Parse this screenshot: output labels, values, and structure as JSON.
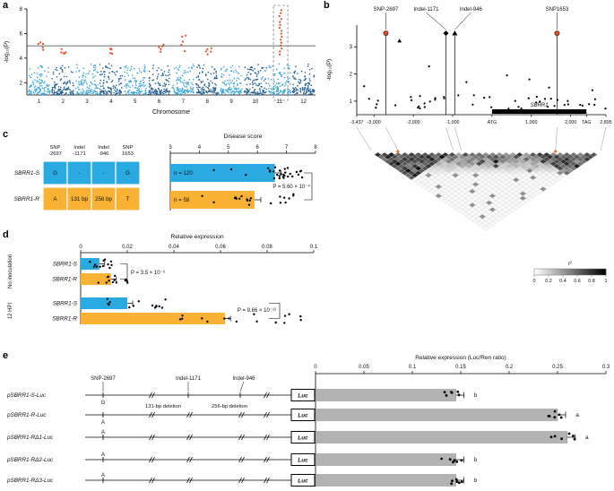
{
  "colors": {
    "chrom_light": "#3aa7dc",
    "chrom_dark": "#1e5f94",
    "significant": "#e84b2a",
    "threshold": "#3a3a3a",
    "blue": "#29abe2",
    "orange": "#f9b233",
    "gray_bar": "#b3b3b3",
    "ld_dot": "#e87722"
  },
  "panels": {
    "a": {
      "letter": "a"
    },
    "b": {
      "letter": "b"
    },
    "c": {
      "letter": "c"
    },
    "d": {
      "letter": "d"
    },
    "e": {
      "letter": "e"
    }
  },
  "chart_data": [
    {
      "id": "gwas_manhattan",
      "panel": "a",
      "type": "scatter",
      "title": "",
      "xlabel": "Chromosome",
      "ylabel": "-log₁₀(P)",
      "ylim": [
        1,
        8
      ],
      "yticks": [
        2,
        4,
        6,
        8
      ],
      "threshold": 5,
      "categories": [
        "1",
        "2",
        "3",
        "4",
        "5",
        "6",
        "7",
        "8",
        "9",
        "10",
        "11",
        "12"
      ],
      "peaks": [
        {
          "chromosome": "1",
          "max_logp": 5.3
        },
        {
          "chromosome": "2",
          "max_logp": 4.9
        },
        {
          "chromosome": "4",
          "max_logp": 4.8
        },
        {
          "chromosome": "6",
          "max_logp": 5.2
        },
        {
          "chromosome": "7",
          "max_logp": 5.9
        },
        {
          "chromosome": "8",
          "max_logp": 4.9
        },
        {
          "chromosome": "11",
          "max_logp": 7.9
        }
      ],
      "highlight_chromosome": "11"
    },
    {
      "id": "regional_association",
      "panel": "b",
      "type": "scatter",
      "ylabel": "-log₁₀(P)",
      "ylim": [
        0.5,
        3.8
      ],
      "yticks": [
        1,
        2,
        3
      ],
      "xlim": [
        -3437,
        2895
      ],
      "xticks": [
        {
          "label": "-3,437",
          "pos": -3437
        },
        {
          "label": "-3,000",
          "pos": -3000
        },
        {
          "label": "-2,000",
          "pos": -2000
        },
        {
          "label": "-1,000",
          "pos": -1000
        },
        {
          "label": "ATG",
          "pos": 0
        },
        {
          "label": "1,000",
          "pos": 1000
        },
        {
          "label": "2,000",
          "pos": 2000
        },
        {
          "label": "TAG",
          "pos": 2400
        },
        {
          "label": "2,895",
          "pos": 2895
        }
      ],
      "gene": {
        "name": "SBRR1",
        "start": 0,
        "end": 2400
      },
      "markers": [
        {
          "label": "SNP-2697",
          "pos": -2697,
          "logp": 3.5,
          "shape": "circle",
          "color": "#e84b2a"
        },
        {
          "label": "Indel-1171",
          "pos": -1171,
          "logp": 3.5,
          "shape": "diamond",
          "color": "#000000"
        },
        {
          "label": "Indel-946",
          "pos": -946,
          "logp": 3.5,
          "shape": "triangle",
          "color": "#000000"
        },
        {
          "label": "SNP1653",
          "pos": 1653,
          "logp": 3.5,
          "shape": "circle",
          "color": "#e84b2a"
        }
      ],
      "ld_legend": {
        "title": "r²",
        "ticks": [
          "0",
          "0.2",
          "0.4",
          "0.6",
          "0.8",
          "1"
        ]
      }
    },
    {
      "id": "haplotype_table",
      "panel": "c",
      "type": "table",
      "columns": [
        [
          "SNP",
          "-2697"
        ],
        [
          "Indel",
          "-1171"
        ],
        [
          "Indel",
          "-946"
        ],
        [
          "SNP",
          "1653"
        ]
      ],
      "rows": [
        {
          "name": "SBRR1-S",
          "cells": [
            "G",
            "-",
            "-",
            "G"
          ],
          "color": "#29abe2"
        },
        {
          "name": "SBRR1-R",
          "cells": [
            "A",
            "131 bp",
            "256 bp",
            "T"
          ],
          "color": "#f9b233"
        }
      ]
    },
    {
      "id": "disease_score",
      "panel": "c",
      "type": "bar",
      "title": "Disease score",
      "xlim": [
        3,
        8
      ],
      "xticks": [
        3,
        4,
        5,
        6,
        7,
        8
      ],
      "bars": [
        {
          "label": "SBRR1-S",
          "value": 6.6,
          "n_label": "n = 120",
          "color": "#29abe2"
        },
        {
          "label": "SBRR1-R",
          "value": 5.9,
          "n_label": "n = 58",
          "color": "#f9b233"
        }
      ],
      "p_value": "P = 5.60 × 10⁻⁴"
    },
    {
      "id": "relative_expression",
      "panel": "d",
      "type": "bar",
      "title": "Relative expression",
      "xlim": [
        0,
        0.1
      ],
      "xticks": [
        "0",
        "0.02",
        "0.04",
        "0.06",
        "0.08",
        "0.1"
      ],
      "groups": [
        {
          "label": "No inoculation",
          "p_value": "P = 3.5 × 10⁻³",
          "bars": [
            {
              "label": "SBRR1-S",
              "value": 0.008,
              "color": "#29abe2"
            },
            {
              "label": "SBRR1-R",
              "value": 0.013,
              "color": "#f9b233"
            }
          ]
        },
        {
          "label": "12 HPI",
          "p_value": "P = 9.66 × 10⁻¹²",
          "bars": [
            {
              "label": "SBRR1-S",
              "value": 0.02,
              "color": "#29abe2"
            },
            {
              "label": "SBRR1-R",
              "value": 0.062,
              "color": "#f9b233"
            }
          ]
        }
      ]
    },
    {
      "id": "luciferase",
      "panel": "e",
      "type": "bar",
      "title": "Relative expression (Luc/Ren ratio)",
      "xlim": [
        0,
        0.3
      ],
      "xticks": [
        "0",
        "0.05",
        "0.1",
        "0.15",
        "0.2",
        "0.25",
        "0.3"
      ],
      "bar_color": "#b3b3b3",
      "bars": [
        {
          "label": "pSBRR1-S-Luc",
          "value": 0.145,
          "letter": "b"
        },
        {
          "label": "pSBRR1-R-Luc",
          "value": 0.25,
          "letter": "a"
        },
        {
          "label": "pSBRR1-RΔ1-Luc",
          "value": 0.26,
          "letter": "a"
        },
        {
          "label": "pSBRR1-RΔ2-Luc",
          "value": 0.145,
          "letter": "b"
        },
        {
          "label": "pSBRR1-RΔ3-Luc",
          "value": 0.145,
          "letter": "b"
        }
      ]
    }
  ],
  "constructs": {
    "annotations": {
      "snp": "SNP-2697",
      "indel1": "Indel-1171",
      "indel2": "Indel-946",
      "del1": "131-bp deletion",
      "del2": "256-bp deletion",
      "luc": "Luc"
    },
    "rows": [
      {
        "label": "pSBRR1-S-Luc",
        "allele": "G",
        "allele_position": "below",
        "indels_present": true
      },
      {
        "label": "pSBRR1-R-Luc",
        "allele": "A",
        "allele_position": "below",
        "indels_present": false
      },
      {
        "label": "pSBRR1-RΔ1-Luc",
        "allele": "A",
        "allele_position": "above",
        "indels_present": false
      },
      {
        "label": "pSBRR1-RΔ2-Luc",
        "allele": "A",
        "allele_position": "above",
        "indels_present": false
      },
      {
        "label": "pSBRR1-RΔ3-Luc",
        "allele": "A",
        "allele_position": "above",
        "indels_present": false
      }
    ]
  }
}
